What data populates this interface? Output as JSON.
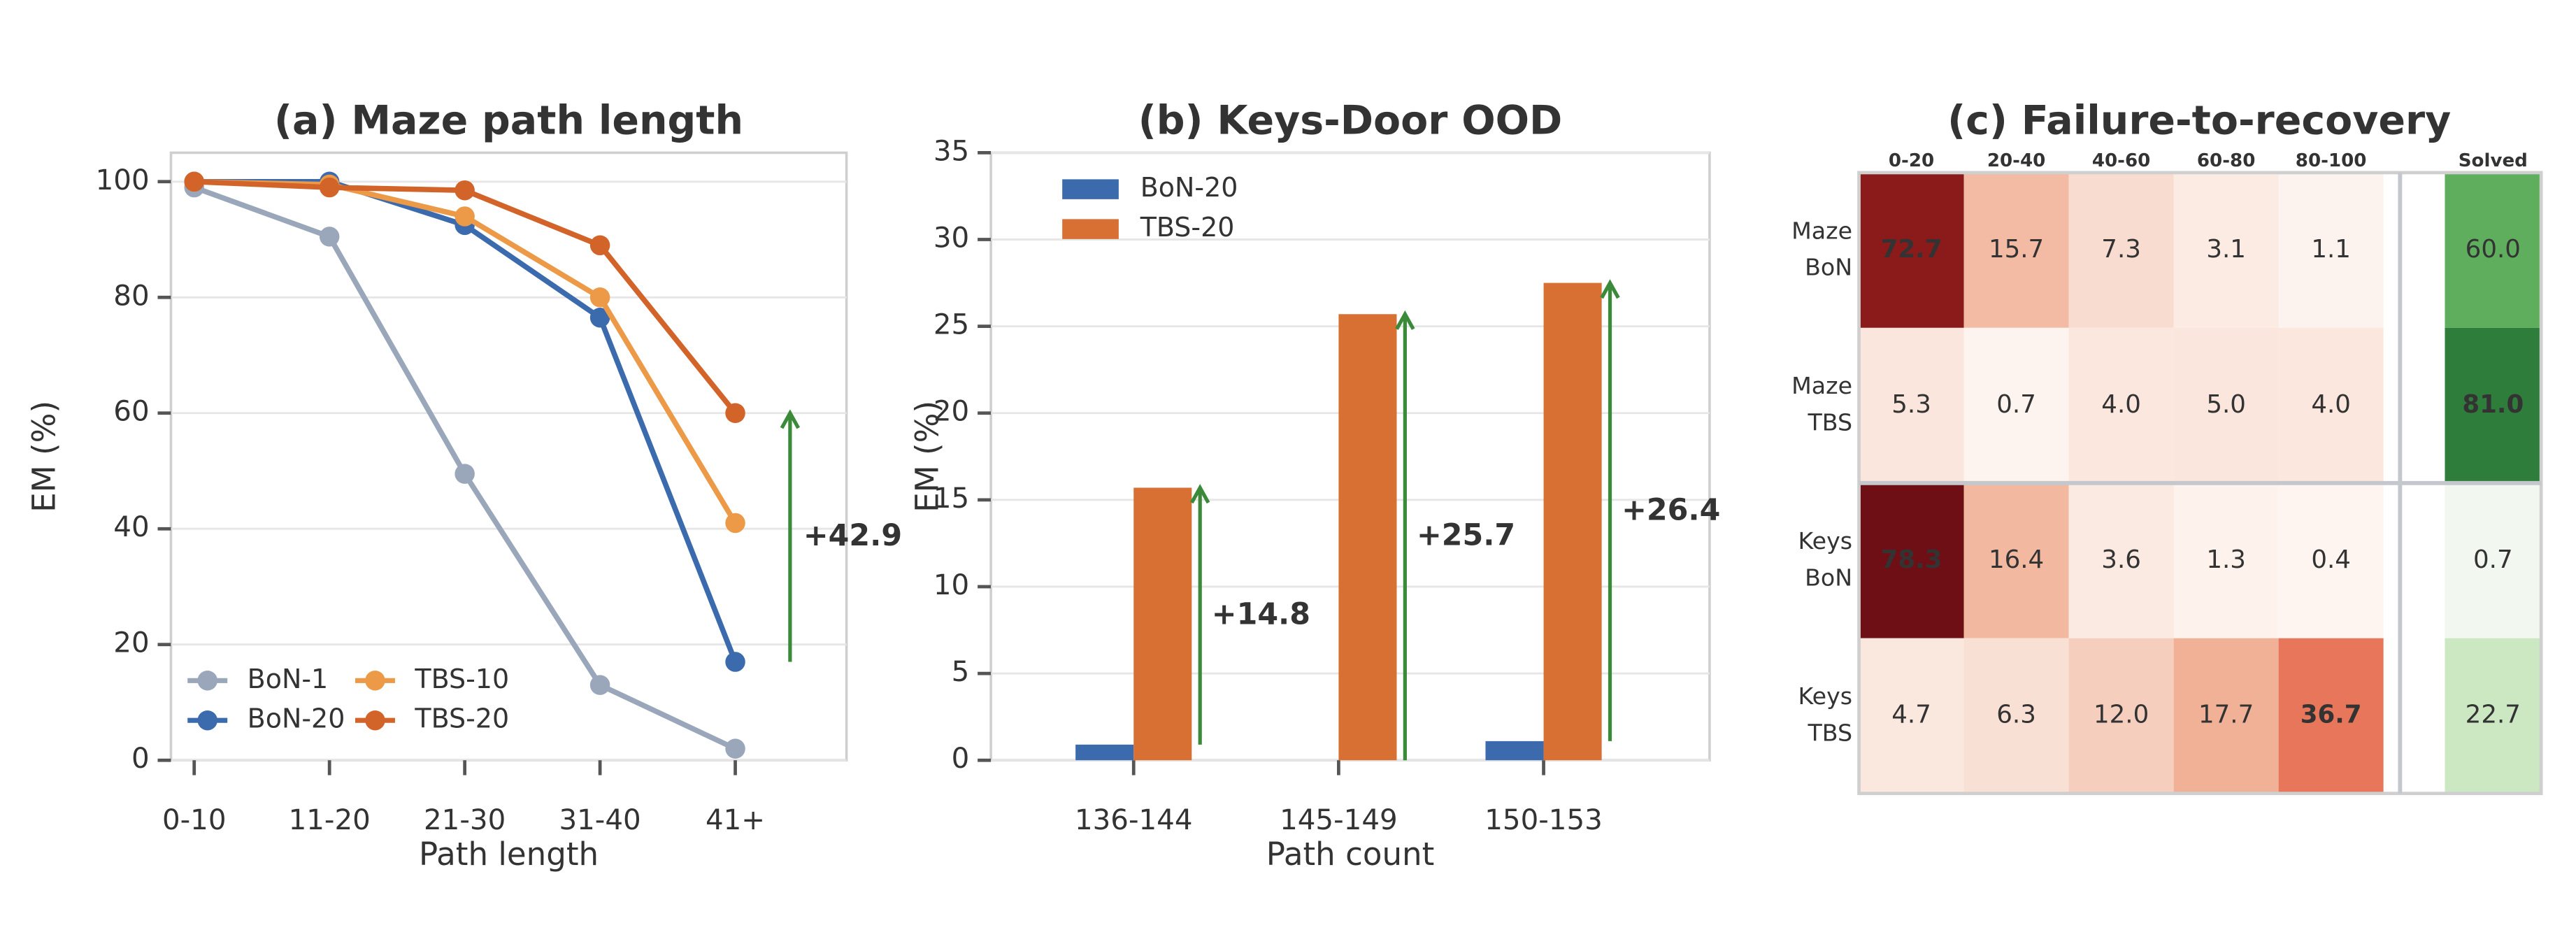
{
  "chart_data": [
    {
      "type": "line",
      "title": "(a) Maze path length",
      "x_label": "Path length",
      "y_label": "EM (%)",
      "categories": [
        "0-10",
        "11-20",
        "21-30",
        "31-40",
        "41+"
      ],
      "series": [
        {
          "name": "BoN-1",
          "color": "#9aa7ba",
          "values": [
            99,
            90.5,
            49.5,
            13,
            2
          ]
        },
        {
          "name": "BoN-20",
          "color": "#3b6aad",
          "values": [
            100,
            100,
            92.5,
            76.5,
            17
          ]
        },
        {
          "name": "TBS-10",
          "color": "#ec9a48",
          "values": [
            100,
            99.5,
            94,
            80,
            41
          ]
        },
        {
          "name": "TBS-20",
          "color": "#d2642a",
          "values": [
            100,
            99,
            98.5,
            89,
            60
          ]
        }
      ],
      "ylim": [
        0,
        105
      ],
      "yticks": [
        0,
        20,
        40,
        60,
        80,
        100
      ],
      "grid": true,
      "legend": "lower left",
      "annotations": [
        "+42.9"
      ],
      "annotation_color": "#3a8a3a"
    },
    {
      "type": "bar",
      "title": "(b) Keys-Door OOD",
      "x_label": "Path count",
      "y_label": "EM (%)",
      "categories": [
        "136-144",
        "145-149",
        "150-153"
      ],
      "series": [
        {
          "name": "BoN-20",
          "color": "#3b6aad",
          "values": [
            0.9,
            0,
            1.1
          ]
        },
        {
          "name": "TBS-20",
          "color": "#d87034",
          "values": [
            15.7,
            25.7,
            27.5
          ]
        }
      ],
      "ylim": [
        0,
        35
      ],
      "yticks": [
        0,
        5,
        10,
        15,
        20,
        25,
        30,
        35
      ],
      "grid": true,
      "legend": "upper left",
      "annotations": [
        "+14.8",
        "+25.7",
        "+26.4"
      ],
      "annotation_color": "#3a8a3a"
    },
    {
      "type": "heatmap",
      "title": "(c) Failure-to-recovery",
      "columns": [
        "0-20",
        "20-40",
        "40-60",
        "60-80",
        "80-100",
        "Solved"
      ],
      "rows": [
        [
          "Maze",
          "BoN"
        ],
        [
          "Maze",
          "TBS"
        ],
        [
          "Keys",
          "BoN"
        ],
        [
          "Keys",
          "TBS"
        ]
      ],
      "values": [
        [
          72.7,
          15.7,
          7.3,
          3.1,
          1.1,
          60.0
        ],
        [
          5.3,
          0.7,
          4.0,
          5.0,
          4.0,
          81.0
        ],
        [
          78.3,
          16.4,
          3.6,
          1.3,
          0.4,
          0.7
        ],
        [
          4.7,
          6.3,
          12.0,
          17.7,
          36.7,
          22.7
        ]
      ],
      "value_labels": [
        [
          "72.7",
          "15.7",
          "7.3",
          "3.1",
          "1.1",
          "60.0"
        ],
        [
          "5.3",
          "0.7",
          "4.0",
          "5.0",
          "4.0",
          "81.0"
        ],
        [
          "78.3",
          "16.4",
          "3.6",
          "1.3",
          "0.4",
          "0.7"
        ],
        [
          "4.7",
          "6.3",
          "12.0",
          "17.7",
          "36.7",
          "22.7"
        ]
      ],
      "colors": [
        [
          "#8b1a1a",
          "#f3bba4",
          "#f9dcd0",
          "#fbebe3",
          "#fdf3ee",
          "#5fae5d"
        ],
        [
          "#fae6dc",
          "#fdf4f0",
          "#fbe7dd",
          "#fae6dc",
          "#fbe7dd",
          "#2e7d3a"
        ],
        [
          "#6d0f14",
          "#f2b9a0",
          "#fbeae2",
          "#fdf2ec",
          "#fef5f1",
          "#f2f8f0"
        ],
        [
          "#fae8df",
          "#f9e0d5",
          "#f6cebd",
          "#f1b196",
          "#e8765a",
          "#cbe8c3"
        ]
      ],
      "bold_cells": [
        [
          0,
          0
        ],
        [
          1,
          5
        ],
        [
          2,
          0
        ],
        [
          3,
          4
        ]
      ]
    }
  ]
}
